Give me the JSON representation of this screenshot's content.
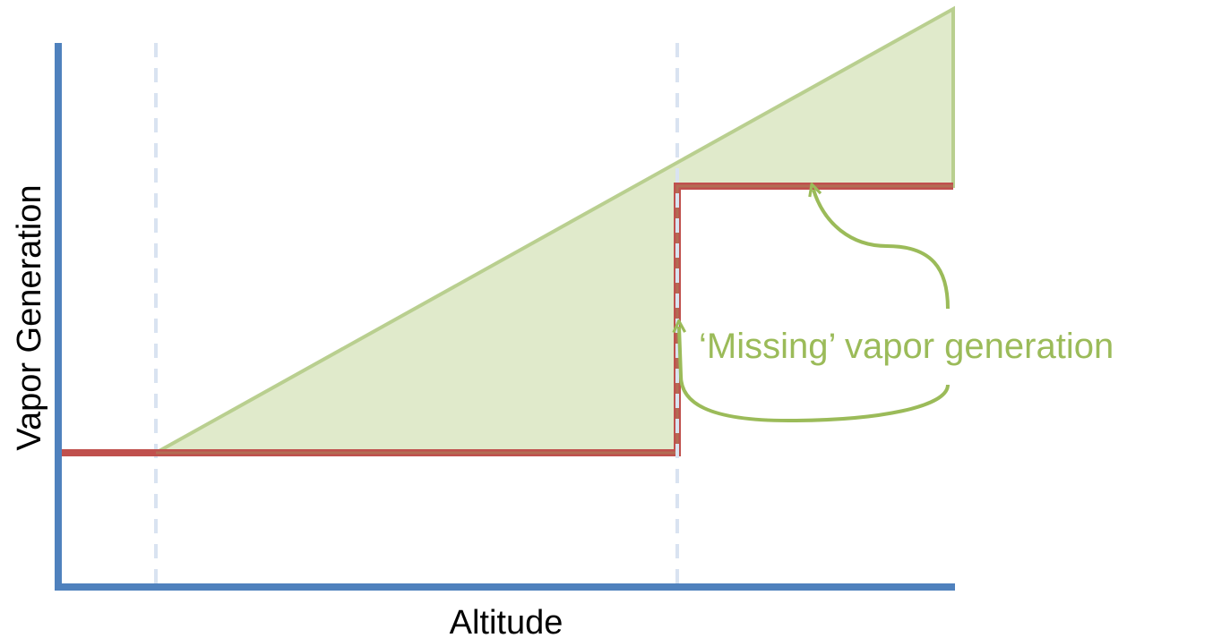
{
  "y_axis_label": "Vapor Generation",
  "x_axis_label": "Altitude",
  "annotation": "‘Missing’ vapor generation"
}
